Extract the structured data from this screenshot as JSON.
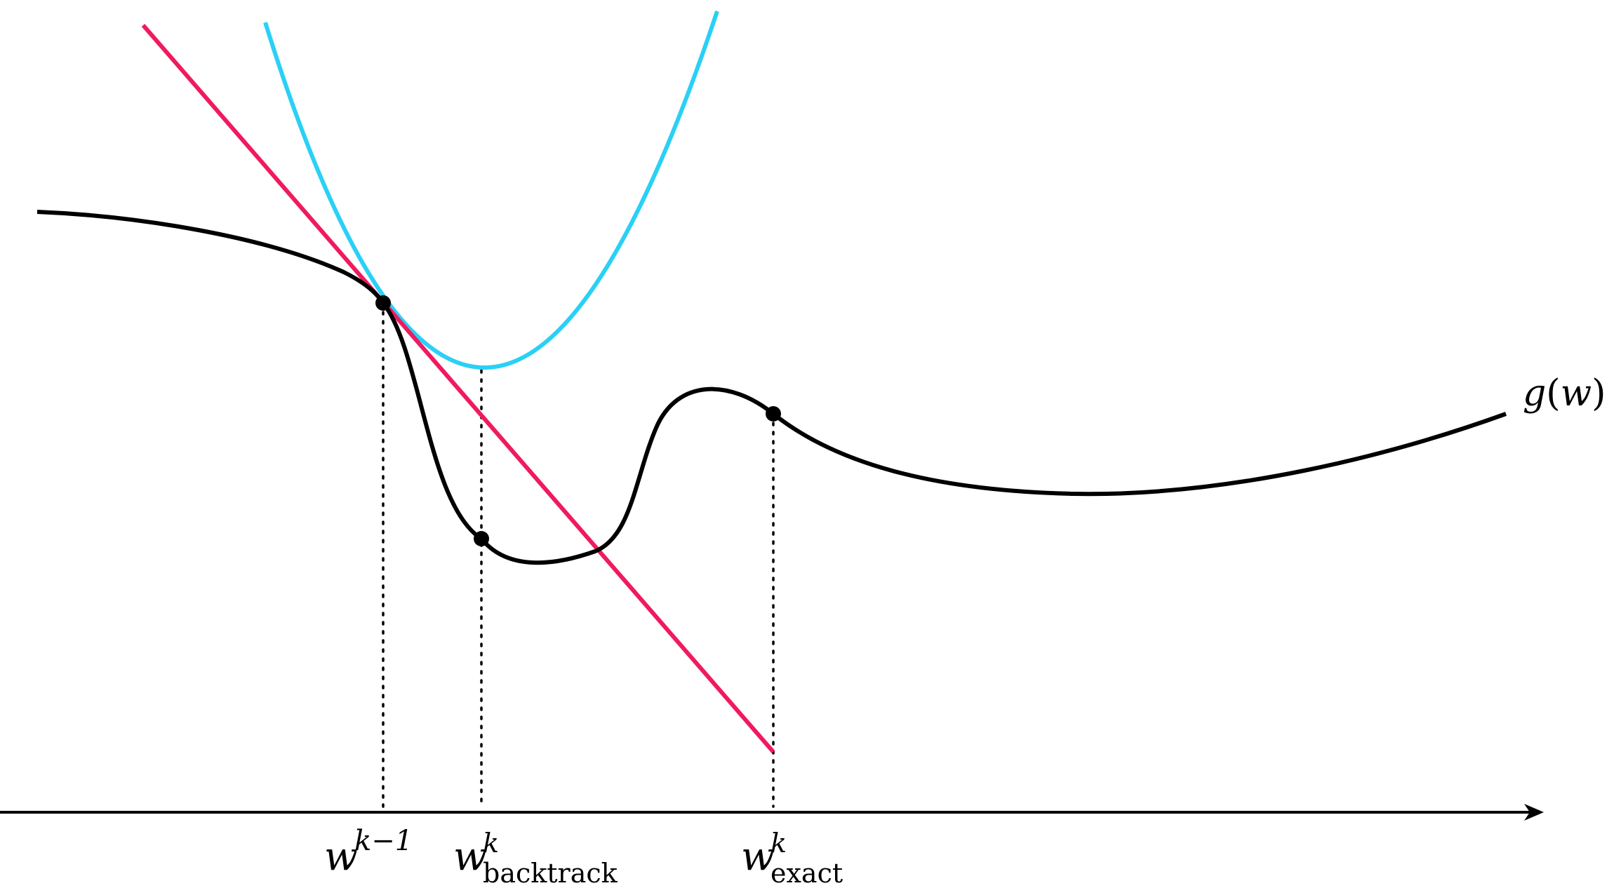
{
  "labels": {
    "function": {
      "name": "g",
      "open": "(",
      "var": "w",
      "close": ")"
    },
    "previous": {
      "base": "w",
      "sup": "k−1"
    },
    "backtrack": {
      "base": "w",
      "sup": "k",
      "sub": "backtrack"
    },
    "exact": {
      "base": "w",
      "sup": "k",
      "sub": "exact"
    }
  },
  "colors": {
    "function_curve": "#000000",
    "tangent_line": "#f01a5e",
    "quadratic_model": "#2ad0f5",
    "axis": "#000000",
    "guide_lines": "#000000",
    "points": "#000000"
  }
}
